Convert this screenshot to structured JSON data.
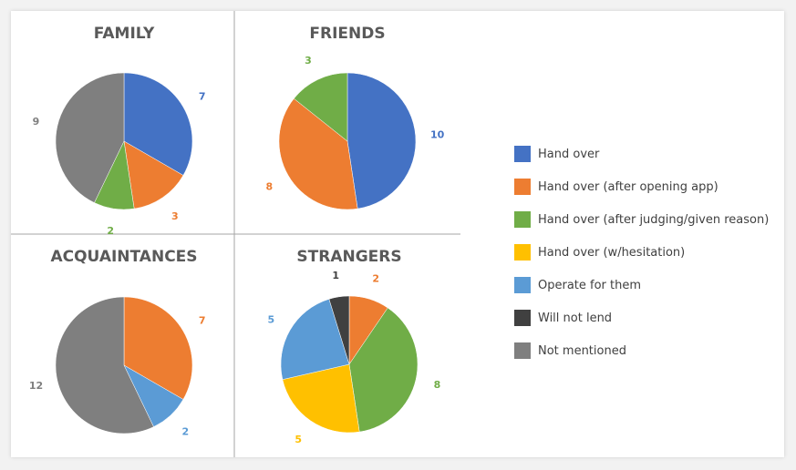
{
  "colors": {
    "Hand over": "#4472c4",
    "Hand over (after opening app)": "#ed7d31",
    "Hand over (after judging/given reason)": "#70ad47",
    "Hand over (w/hesitation)": "#ffc000",
    "Operate for them": "#5b9bd5",
    "Will not lend": "#404040",
    "Not mentioned": "#7f7f7f"
  },
  "chart_data": {
    "type": "pie",
    "legend": {
      "placement": "right",
      "entries": [
        "Hand over",
        "Hand over (after opening app)",
        "Hand over (after judging/given reason)",
        "Hand over (w/hesitation)",
        "Operate for them",
        "Will not lend",
        "Not mentioned"
      ]
    },
    "charts": [
      {
        "title": "FAMILY",
        "slices": [
          {
            "category": "Hand over",
            "value": 7
          },
          {
            "category": "Hand over (after opening app)",
            "value": 3
          },
          {
            "category": "Hand over (after judging/given reason)",
            "value": 2
          },
          {
            "category": "Not mentioned",
            "value": 9
          }
        ]
      },
      {
        "title": "FRIENDS",
        "slices": [
          {
            "category": "Hand over",
            "value": 10
          },
          {
            "category": "Hand over (after opening app)",
            "value": 8
          },
          {
            "category": "Hand over (after judging/given reason)",
            "value": 3
          }
        ]
      },
      {
        "title": "ACQUAINTANCES",
        "slices": [
          {
            "category": "Hand over (after opening app)",
            "value": 7
          },
          {
            "category": "Operate for them",
            "value": 2
          },
          {
            "category": "Not mentioned",
            "value": 12
          }
        ]
      },
      {
        "title": "STRANGERS",
        "slices": [
          {
            "category": "Hand over (after opening app)",
            "value": 2
          },
          {
            "category": "Hand over (after judging/given reason)",
            "value": 8
          },
          {
            "category": "Hand over (w/hesitation)",
            "value": 5
          },
          {
            "category": "Operate for them",
            "value": 5
          },
          {
            "category": "Will not lend",
            "value": 1
          }
        ]
      }
    ]
  }
}
